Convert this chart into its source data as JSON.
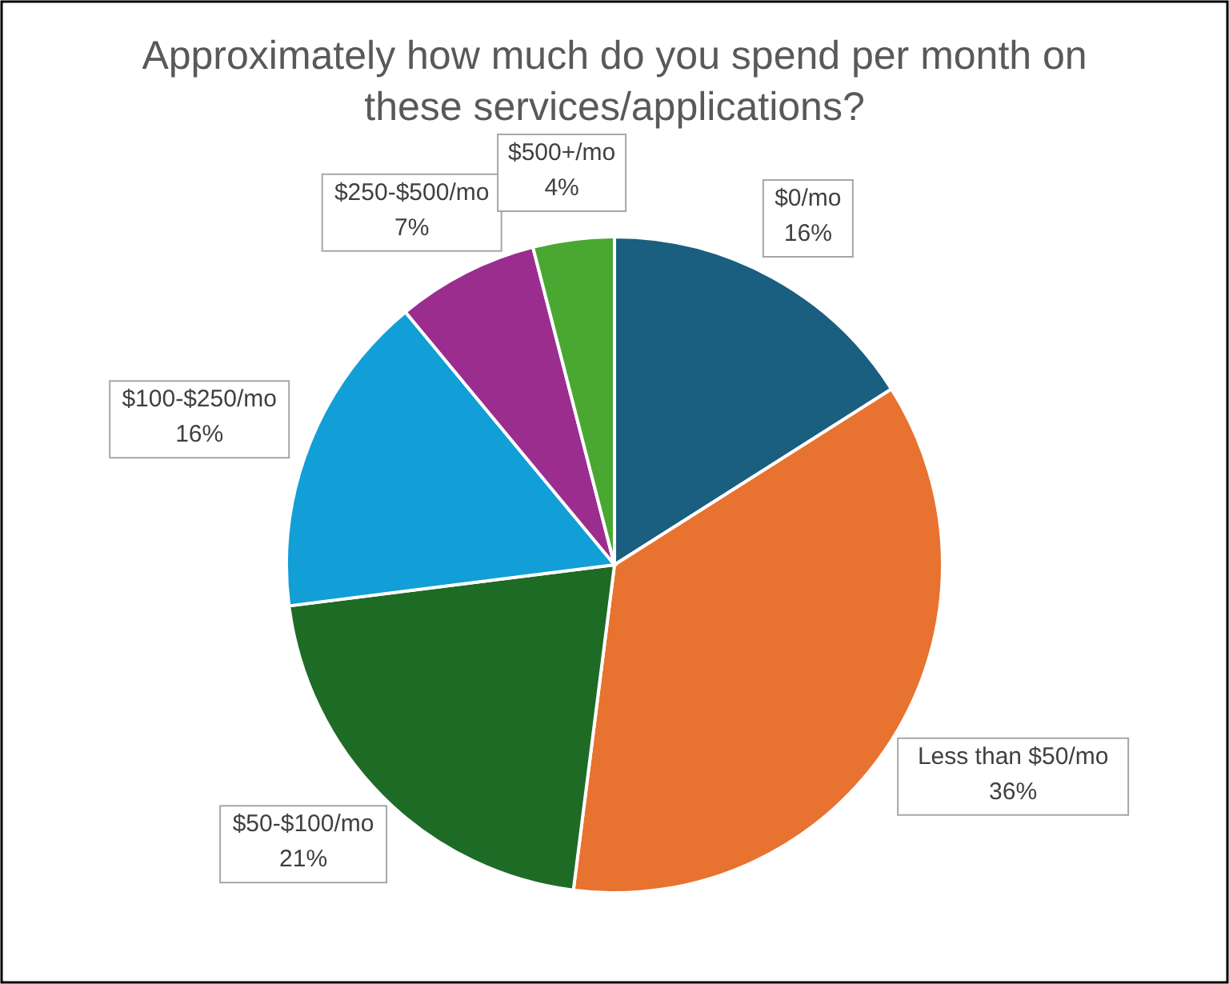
{
  "chart_data": {
    "type": "pie",
    "title": "Approximately how much do you spend per month on these services/applications?",
    "categories": [
      "$0/mo",
      "Less than $50/mo",
      "$50-$100/mo",
      "$100-$250/mo",
      "$250-$500/mo",
      "$500+/mo"
    ],
    "values": [
      16,
      36,
      21,
      16,
      7,
      4
    ],
    "value_labels": [
      "16%",
      "36%",
      "21%",
      "16%",
      "7%",
      "4%"
    ],
    "colors": [
      "#1a5e80",
      "#e8722f",
      "#1e6b26",
      "#129ed6",
      "#9b2d8f",
      "#4aa832"
    ]
  }
}
